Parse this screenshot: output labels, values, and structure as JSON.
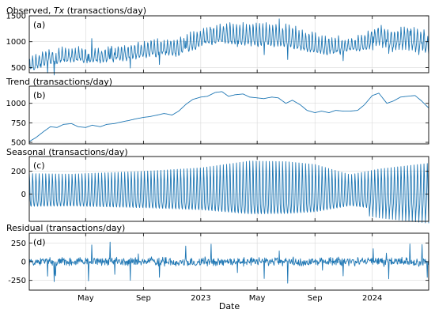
{
  "chart_data": [
    {
      "type": "line",
      "letter": "(a)",
      "title_prefix": "Observed, ",
      "title_italic": "Tx",
      "title_suffix": " (transactions/day)",
      "x_range": [
        "2022-01-01",
        "2024-04-30"
      ],
      "ylim": [
        400,
        1500
      ],
      "yticks": [
        500,
        1000,
        1500
      ],
      "yticklabels": [
        "500",
        "1000",
        "1500"
      ],
      "grid": true,
      "trend_keypoints": [
        [
          "2022-01-01",
          540
        ],
        [
          "2022-02-15",
          680
        ],
        [
          "2022-04-01",
          720
        ],
        [
          "2022-06-01",
          700
        ],
        [
          "2022-08-01",
          770
        ],
        [
          "2022-10-01",
          850
        ],
        [
          "2022-11-15",
          880
        ],
        [
          "2023-01-01",
          1050
        ],
        [
          "2023-02-15",
          1120
        ],
        [
          "2023-04-01",
          1100
        ],
        [
          "2023-06-01",
          1080
        ],
        [
          "2023-07-15",
          1050
        ],
        [
          "2023-09-15",
          890
        ],
        [
          "2023-11-01",
          890
        ],
        [
          "2023-12-15",
          950
        ],
        [
          "2024-01-15",
          1110
        ],
        [
          "2024-02-15",
          1000
        ],
        [
          "2024-03-15",
          1080
        ],
        [
          "2024-04-30",
          960
        ]
      ],
      "seasonal_amplitude": 170,
      "noise_amplitude": 90,
      "color": "#1f77b4"
    },
    {
      "type": "line",
      "letter": "(b)",
      "title": "Trend (transactions/day)",
      "x_range": [
        "2022-01-01",
        "2024-04-30"
      ],
      "ylim": [
        480,
        1220
      ],
      "yticks": [
        500,
        750,
        1000
      ],
      "yticklabels": [
        "500",
        "750",
        "1000"
      ],
      "grid": true,
      "values": [
        [
          "2022-01-01",
          510
        ],
        [
          "2022-01-15",
          560
        ],
        [
          "2022-02-01",
          640
        ],
        [
          "2022-02-15",
          700
        ],
        [
          "2022-03-01",
          690
        ],
        [
          "2022-03-15",
          730
        ],
        [
          "2022-04-01",
          740
        ],
        [
          "2022-04-15",
          700
        ],
        [
          "2022-05-01",
          690
        ],
        [
          "2022-05-15",
          720
        ],
        [
          "2022-06-01",
          700
        ],
        [
          "2022-06-15",
          730
        ],
        [
          "2022-07-01",
          740
        ],
        [
          "2022-07-15",
          760
        ],
        [
          "2022-08-01",
          780
        ],
        [
          "2022-08-15",
          800
        ],
        [
          "2022-09-01",
          820
        ],
        [
          "2022-09-15",
          830
        ],
        [
          "2022-10-01",
          850
        ],
        [
          "2022-10-15",
          870
        ],
        [
          "2022-11-01",
          850
        ],
        [
          "2022-11-15",
          900
        ],
        [
          "2022-12-01",
          990
        ],
        [
          "2022-12-15",
          1050
        ],
        [
          "2023-01-01",
          1080
        ],
        [
          "2023-01-15",
          1090
        ],
        [
          "2023-02-01",
          1140
        ],
        [
          "2023-02-15",
          1150
        ],
        [
          "2023-03-01",
          1090
        ],
        [
          "2023-03-15",
          1110
        ],
        [
          "2023-04-01",
          1120
        ],
        [
          "2023-04-15",
          1080
        ],
        [
          "2023-05-01",
          1070
        ],
        [
          "2023-05-15",
          1060
        ],
        [
          "2023-06-01",
          1080
        ],
        [
          "2023-06-15",
          1070
        ],
        [
          "2023-07-01",
          1000
        ],
        [
          "2023-07-15",
          1040
        ],
        [
          "2023-08-01",
          980
        ],
        [
          "2023-08-15",
          910
        ],
        [
          "2023-09-01",
          880
        ],
        [
          "2023-09-15",
          900
        ],
        [
          "2023-10-01",
          880
        ],
        [
          "2023-10-15",
          910
        ],
        [
          "2023-11-01",
          900
        ],
        [
          "2023-11-15",
          900
        ],
        [
          "2023-12-01",
          910
        ],
        [
          "2023-12-15",
          980
        ],
        [
          "2024-01-01",
          1100
        ],
        [
          "2024-01-15",
          1130
        ],
        [
          "2024-02-01",
          1000
        ],
        [
          "2024-02-15",
          1030
        ],
        [
          "2024-03-01",
          1080
        ],
        [
          "2024-03-15",
          1090
        ],
        [
          "2024-04-01",
          1100
        ],
        [
          "2024-04-15",
          1030
        ],
        [
          "2024-04-30",
          940
        ]
      ],
      "color": "#1f77b4"
    },
    {
      "type": "line",
      "letter": "(c)",
      "title": "Seasonal (transactions/day)",
      "x_range": [
        "2022-01-01",
        "2024-04-30"
      ],
      "ylim": [
        -240,
        330
      ],
      "yticks": [
        0,
        200
      ],
      "yticklabels": [
        "0",
        "200"
      ],
      "grid": true,
      "weekly_amplitude_keypoints": [
        [
          "2022-01-01",
          180
        ],
        [
          "2022-04-01",
          175
        ],
        [
          "2022-09-01",
          200
        ],
        [
          "2023-01-01",
          230
        ],
        [
          "2023-04-15",
          290
        ],
        [
          "2023-07-01",
          285
        ],
        [
          "2023-09-01",
          260
        ],
        [
          "2023-11-15",
          170
        ],
        [
          "2024-01-15",
          220
        ],
        [
          "2024-04-30",
          270
        ]
      ],
      "color": "#1f77b4"
    },
    {
      "type": "line",
      "letter": "(d)",
      "title": "Residual (transactions/day)",
      "x_range": [
        "2022-01-01",
        "2024-04-30"
      ],
      "ylim": [
        -380,
        380
      ],
      "yticks": [
        -250,
        0,
        250
      ],
      "yticklabels": [
        "-250",
        "0",
        "250"
      ],
      "grid": true,
      "noise_amplitude": 70,
      "spike_amplitude": 230,
      "color": "#1f77b4"
    }
  ],
  "x_axis": {
    "label": "Date",
    "ticks": [
      {
        "date": "2022-05-01",
        "label": "May"
      },
      {
        "date": "2022-09-01",
        "label": "Sep"
      },
      {
        "date": "2023-01-01",
        "label": "2023"
      },
      {
        "date": "2023-05-01",
        "label": "May"
      },
      {
        "date": "2023-09-01",
        "label": "Sep"
      },
      {
        "date": "2024-01-01",
        "label": "2024"
      }
    ]
  }
}
